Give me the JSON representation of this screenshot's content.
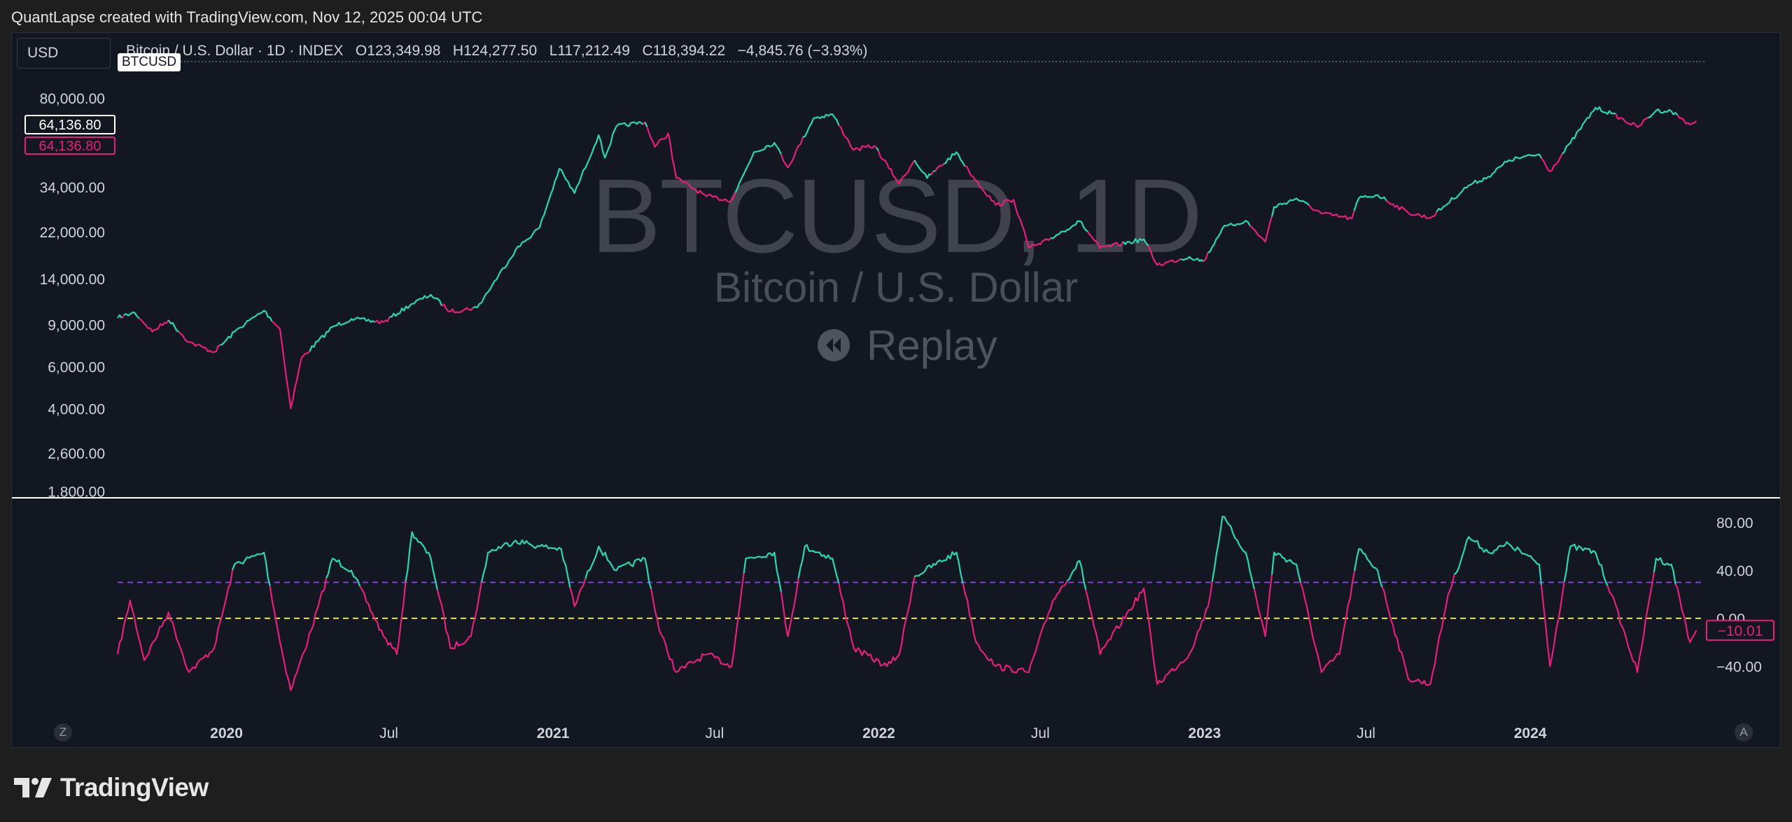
{
  "caption": "QuantLapse created with TradingView.com, Nov 12, 2025 00:04 UTC",
  "currency": "USD",
  "legend": {
    "name": "Bitcoin / U.S. Dollar · 1D · INDEX",
    "open_label": "O",
    "open": "123,349.98",
    "high_label": "H",
    "high": "124,277.50",
    "low_label": "L",
    "low": "117,212.49",
    "close_label": "C",
    "close": "118,394.22",
    "change": "−4,845.76 (−3.93%)"
  },
  "symbol_tag": "BTCUSD",
  "watermark": {
    "title": "BTCUSD, 1D",
    "subtitle": "Bitcoin / U.S. Dollar",
    "replay": "Replay"
  },
  "price_markers": {
    "white": "64,136.80",
    "pink": "64,136.80"
  },
  "osc_marker": "−10.01",
  "axis_buttons": {
    "left": "Z",
    "right": "A"
  },
  "brand": "TradingView",
  "colors": {
    "up": "#26d9b0",
    "down": "#e91e7a",
    "background": "#131722",
    "purple_level": "#7e3fd6",
    "yellow_level": "#e8e35a"
  },
  "chart_data": [
    {
      "type": "line",
      "scale": "log",
      "title": "",
      "xlabel": "",
      "ylabel": "",
      "x_ticks": [
        "2020",
        "Jul",
        "2021",
        "Jul",
        "2022",
        "Jul",
        "2023",
        "Jul",
        "2024"
      ],
      "y_ticks": [
        "80,000.00",
        "34,000.00",
        "22,000.00",
        "14,000.00",
        "9,000.00",
        "6,000.00",
        "4,000.00",
        "2,600.00",
        "1,800.00"
      ],
      "ylim": [
        1700,
        105000
      ],
      "xlim": [
        "2019-09-01",
        "2024-07-15"
      ],
      "series": [
        {
          "points": [
            [
              "2019-09-01",
              9600
            ],
            [
              "2019-09-20",
              10100
            ],
            [
              "2019-10-10",
              8400
            ],
            [
              "2019-10-28",
              9400
            ],
            [
              "2019-11-20",
              7600
            ],
            [
              "2019-12-18",
              6900
            ],
            [
              "2020-01-15",
              8700
            ],
            [
              "2020-02-12",
              10300
            ],
            [
              "2020-03-01",
              8600
            ],
            [
              "2020-03-13",
              4000
            ],
            [
              "2020-03-25",
              6500
            ],
            [
              "2020-04-29",
              8800
            ],
            [
              "2020-05-20",
              9500
            ],
            [
              "2020-06-25",
              9200
            ],
            [
              "2020-07-27",
              11000
            ],
            [
              "2020-08-17",
              12000
            ],
            [
              "2020-09-08",
              10200
            ],
            [
              "2020-10-08",
              10600
            ],
            [
              "2020-10-25",
              13200
            ],
            [
              "2020-11-20",
              18500
            ],
            [
              "2020-12-17",
              23000
            ],
            [
              "2021-01-08",
              40500
            ],
            [
              "2021-01-25",
              32000
            ],
            [
              "2021-02-21",
              56000
            ],
            [
              "2021-02-28",
              45000
            ],
            [
              "2021-03-13",
              61000
            ],
            [
              "2021-04-14",
              63500
            ],
            [
              "2021-04-25",
              50000
            ],
            [
              "2021-05-10",
              57000
            ],
            [
              "2021-05-19",
              37000
            ],
            [
              "2021-06-22",
              31000
            ],
            [
              "2021-07-20",
              29800
            ],
            [
              "2021-08-14",
              47500
            ],
            [
              "2021-09-06",
              52000
            ],
            [
              "2021-09-21",
              41000
            ],
            [
              "2021-10-20",
              66000
            ],
            [
              "2021-11-10",
              68500
            ],
            [
              "2021-12-04",
              48500
            ],
            [
              "2021-12-27",
              50500
            ],
            [
              "2022-01-24",
              35000
            ],
            [
              "2022-02-10",
              44000
            ],
            [
              "2022-02-24",
              37000
            ],
            [
              "2022-03-29",
              47500
            ],
            [
              "2022-04-12",
              39500
            ],
            [
              "2022-05-12",
              28500
            ],
            [
              "2022-06-01",
              30000
            ],
            [
              "2022-06-18",
              19000
            ],
            [
              "2022-07-01",
              19500
            ],
            [
              "2022-08-14",
              24400
            ],
            [
              "2022-09-06",
              18800
            ],
            [
              "2022-10-25",
              20500
            ],
            [
              "2022-11-09",
              16000
            ],
            [
              "2022-12-15",
              17300
            ],
            [
              "2022-12-31",
              16550
            ],
            [
              "2023-01-21",
              22800
            ],
            [
              "2023-02-16",
              24500
            ],
            [
              "2023-03-10",
              20000
            ],
            [
              "2023-03-20",
              28000
            ],
            [
              "2023-04-14",
              30400
            ],
            [
              "2023-05-12",
              26300
            ],
            [
              "2023-06-15",
              25000
            ],
            [
              "2023-06-23",
              30500
            ],
            [
              "2023-07-14",
              31400
            ],
            [
              "2023-08-17",
              26500
            ],
            [
              "2023-09-11",
              25200
            ],
            [
              "2023-10-24",
              34500
            ],
            [
              "2023-11-15",
              37500
            ],
            [
              "2023-12-08",
              44000
            ],
            [
              "2024-01-11",
              46500
            ],
            [
              "2024-01-23",
              39500
            ],
            [
              "2024-02-15",
              52000
            ],
            [
              "2024-03-14",
              73000
            ],
            [
              "2024-04-01",
              69000
            ],
            [
              "2024-04-30",
              60500
            ],
            [
              "2024-05-21",
              71000
            ],
            [
              "2024-06-07",
              70500
            ],
            [
              "2024-06-28",
              62000
            ],
            [
              "2024-07-05",
              64100
            ]
          ]
        }
      ]
    },
    {
      "type": "line",
      "title": "",
      "xlabel": "",
      "ylabel": "",
      "y_ticks": [
        "80.00",
        "40.00",
        "0.00",
        "−40.00"
      ],
      "ylim": [
        -80,
        100
      ],
      "reference_lines": [
        {
          "value": 30,
          "style": "dashed",
          "color": "#7e3fd6"
        },
        {
          "value": 0,
          "style": "dashed",
          "color": "#e8e35a"
        }
      ],
      "series": [
        {
          "points": [
            [
              "2019-09-01",
              -30
            ],
            [
              "2019-09-15",
              15
            ],
            [
              "2019-10-01",
              -35
            ],
            [
              "2019-10-28",
              5
            ],
            [
              "2019-11-20",
              -45
            ],
            [
              "2019-12-18",
              -25
            ],
            [
              "2020-01-10",
              45
            ],
            [
              "2020-02-12",
              55
            ],
            [
              "2020-03-01",
              -20
            ],
            [
              "2020-03-13",
              -60
            ],
            [
              "2020-04-05",
              -10
            ],
            [
              "2020-04-29",
              50
            ],
            [
              "2020-05-20",
              40
            ],
            [
              "2020-06-25",
              -15
            ],
            [
              "2020-07-10",
              -30
            ],
            [
              "2020-07-27",
              72
            ],
            [
              "2020-08-17",
              50
            ],
            [
              "2020-09-08",
              -25
            ],
            [
              "2020-10-01",
              -15
            ],
            [
              "2020-10-20",
              55
            ],
            [
              "2020-11-20",
              65
            ],
            [
              "2020-12-17",
              60
            ],
            [
              "2021-01-10",
              58
            ],
            [
              "2021-01-25",
              10
            ],
            [
              "2021-02-21",
              60
            ],
            [
              "2021-03-13",
              40
            ],
            [
              "2021-04-14",
              50
            ],
            [
              "2021-04-30",
              -10
            ],
            [
              "2021-05-19",
              -45
            ],
            [
              "2021-06-22",
              -30
            ],
            [
              "2021-07-20",
              -40
            ],
            [
              "2021-08-05",
              50
            ],
            [
              "2021-09-06",
              55
            ],
            [
              "2021-09-21",
              -15
            ],
            [
              "2021-10-10",
              60
            ],
            [
              "2021-11-10",
              50
            ],
            [
              "2021-12-04",
              -25
            ],
            [
              "2022-01-10",
              -40
            ],
            [
              "2022-01-24",
              -30
            ],
            [
              "2022-02-10",
              35
            ],
            [
              "2022-03-29",
              55
            ],
            [
              "2022-04-20",
              -20
            ],
            [
              "2022-05-12",
              -40
            ],
            [
              "2022-06-18",
              -45
            ],
            [
              "2022-07-15",
              15
            ],
            [
              "2022-08-14",
              48
            ],
            [
              "2022-09-06",
              -30
            ],
            [
              "2022-10-25",
              25
            ],
            [
              "2022-11-09",
              -55
            ],
            [
              "2022-12-15",
              -30
            ],
            [
              "2023-01-05",
              10
            ],
            [
              "2023-01-21",
              85
            ],
            [
              "2023-02-16",
              55
            ],
            [
              "2023-03-10",
              -15
            ],
            [
              "2023-03-20",
              55
            ],
            [
              "2023-04-14",
              45
            ],
            [
              "2023-05-12",
              -45
            ],
            [
              "2023-06-01",
              -30
            ],
            [
              "2023-06-23",
              58
            ],
            [
              "2023-07-14",
              40
            ],
            [
              "2023-08-17",
              -50
            ],
            [
              "2023-09-11",
              -55
            ],
            [
              "2023-10-01",
              20
            ],
            [
              "2023-10-24",
              68
            ],
            [
              "2023-11-15",
              55
            ],
            [
              "2023-12-08",
              62
            ],
            [
              "2024-01-11",
              45
            ],
            [
              "2024-01-23",
              -40
            ],
            [
              "2024-02-15",
              60
            ],
            [
              "2024-03-14",
              55
            ],
            [
              "2024-04-01",
              20
            ],
            [
              "2024-04-30",
              -45
            ],
            [
              "2024-05-21",
              50
            ],
            [
              "2024-06-07",
              45
            ],
            [
              "2024-06-28",
              -20
            ],
            [
              "2024-07-05",
              -10
            ]
          ]
        }
      ]
    }
  ]
}
